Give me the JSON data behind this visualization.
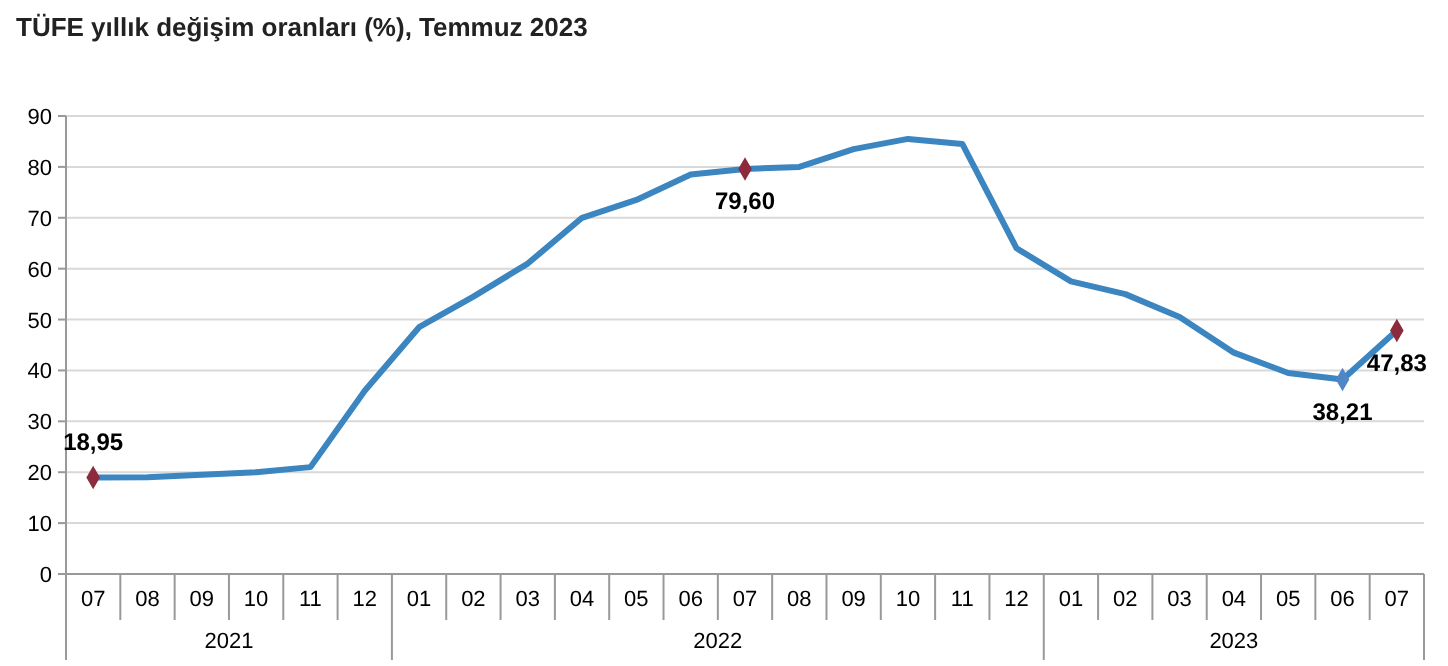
{
  "chart_data": {
    "type": "line",
    "title": "TÜFE yıllık değişim oranları (%), Temmuz 2023",
    "categories": [
      "07",
      "08",
      "09",
      "10",
      "11",
      "12",
      "01",
      "02",
      "03",
      "04",
      "05",
      "06",
      "07",
      "08",
      "09",
      "10",
      "11",
      "12",
      "01",
      "02",
      "03",
      "04",
      "05",
      "06",
      "07"
    ],
    "annotations": [
      "2021",
      "2022",
      "2023"
    ],
    "series": [
      {
        "color": "#3b85c0",
        "values": [
          18.95,
          19,
          19.5,
          20,
          21,
          36,
          48.5,
          54.5,
          61,
          70,
          73.5,
          78.5,
          79.6,
          80,
          83.5,
          85.5,
          84.5,
          64,
          57.5,
          55,
          50.5,
          43.5,
          39.5,
          38.21,
          47.83
        ],
        "value_labels": [
          "18,95",
          null,
          null,
          null,
          null,
          null,
          null,
          null,
          null,
          null,
          null,
          null,
          "79,60",
          null,
          null,
          null,
          null,
          null,
          null,
          null,
          null,
          null,
          null,
          "38,21",
          "47,83"
        ]
      },
      {
        "type": "scatter",
        "marker": "diamond",
        "color": "#8b2b3b",
        "colors": [
          null,
          null,
          null,
          null,
          null,
          null,
          null,
          null,
          null,
          null,
          null,
          null,
          null,
          null,
          null,
          null,
          null,
          null,
          null,
          null,
          null,
          null,
          null,
          "#4f86c6",
          null
        ],
        "values": [
          18.95,
          null,
          null,
          null,
          null,
          null,
          null,
          null,
          null,
          null,
          null,
          null,
          79.6,
          null,
          null,
          null,
          null,
          null,
          null,
          null,
          null,
          null,
          null,
          38.21,
          47.83
        ]
      }
    ],
    "ylim": [
      0,
      90
    ],
    "yticks": [
      0,
      10,
      20,
      30,
      40,
      50,
      60,
      70,
      80,
      90
    ],
    "grid": "y",
    "line_style": "solid"
  }
}
